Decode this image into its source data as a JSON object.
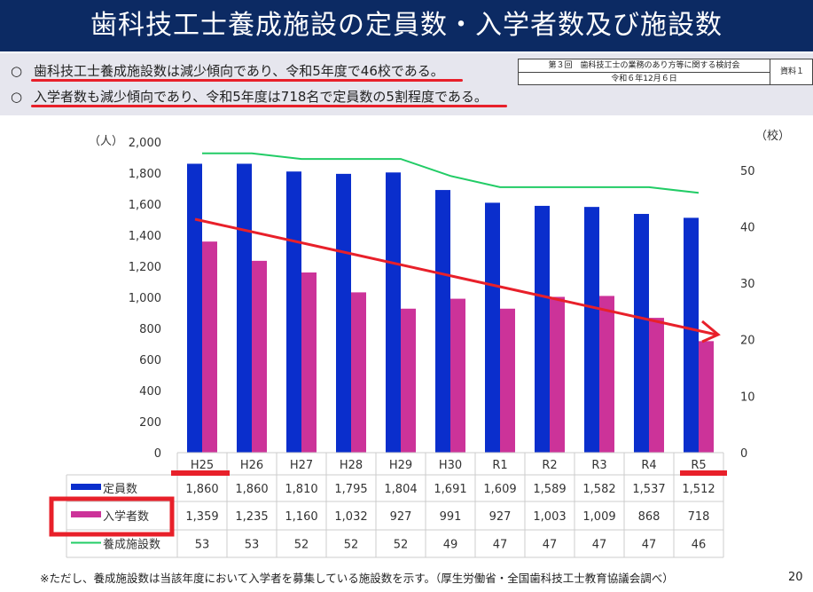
{
  "header": {
    "title": "歯科技工士養成施設の定員数・入学者数及び施設数"
  },
  "bullets": [
    {
      "mark": "○",
      "text": "歯科技工士養成施設数は減少傾向であり、令和5年度で46校である。"
    },
    {
      "mark": "○",
      "text": "入学者数も減少傾向であり、令和5年度は718名で定員数の5割程度である。"
    }
  ],
  "meta": {
    "meeting": "第３回　歯科技工士の業務のあり方等に関する検討会",
    "date": "令和６年12月６日",
    "doc": "資料１"
  },
  "chart_data": {
    "type": "bar",
    "categories": [
      "H25",
      "H26",
      "H27",
      "H28",
      "H29",
      "H30",
      "R1",
      "R2",
      "R3",
      "R4",
      "R5"
    ],
    "y_left": {
      "unit": "（人）",
      "ylim": [
        0,
        2000
      ],
      "ticks": [
        "0",
        "200",
        "400",
        "600",
        "800",
        "1,000",
        "1,200",
        "1,400",
        "1,600",
        "1,800",
        "2,000"
      ]
    },
    "y_right": {
      "unit": "（校）",
      "ylim": [
        0,
        55
      ],
      "ticks": [
        "0",
        "10",
        "20",
        "30",
        "40",
        "50"
      ]
    },
    "series": [
      {
        "name": "定員数",
        "type": "bar",
        "axis": "left",
        "color": "#0a2ecc",
        "values": [
          1860,
          1860,
          1810,
          1795,
          1804,
          1691,
          1609,
          1589,
          1582,
          1537,
          1512
        ],
        "labels": [
          "1,860",
          "1,860",
          "1,810",
          "1,795",
          "1,804",
          "1,691",
          "1,609",
          "1,589",
          "1,582",
          "1,537",
          "1,512"
        ]
      },
      {
        "name": "入学者数",
        "type": "bar",
        "axis": "left",
        "color": "#cc3399",
        "values": [
          1359,
          1235,
          1160,
          1032,
          927,
          991,
          927,
          1003,
          1009,
          868,
          718
        ],
        "labels": [
          "1,359",
          "1,235",
          "1,160",
          "1,032",
          "927",
          "991",
          "927",
          "1,003",
          "1,009",
          "868",
          "718"
        ]
      },
      {
        "name": "養成施設数",
        "type": "line",
        "axis": "right",
        "color": "#22cc66",
        "values": [
          53,
          53,
          52,
          52,
          52,
          49,
          47,
          47,
          47,
          47,
          46
        ],
        "labels": [
          "53",
          "53",
          "52",
          "52",
          "52",
          "49",
          "47",
          "47",
          "47",
          "47",
          "46"
        ]
      }
    ],
    "annotation": {
      "type": "trend-arrow",
      "color": "#e8202a"
    },
    "grid": false
  },
  "footer": {
    "note": "※ただし、養成施設数は当該年度において入学者を募集している施設数を示す。（厚生労働省・全国歯科技工士教育協議会調べ）",
    "page": "20"
  }
}
